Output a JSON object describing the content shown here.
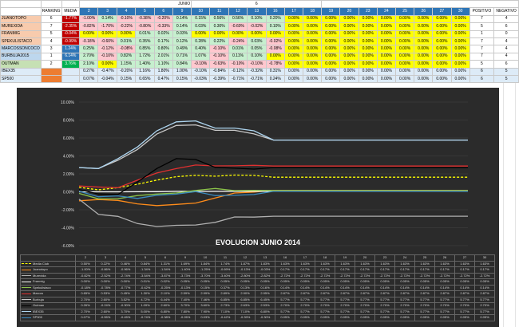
{
  "header": {
    "month": "JUNIO",
    "number": "6",
    "ranking": "RANKING",
    "media": "MEDIA",
    "positivo": "POSITIVO",
    "negativo": "NEGATIVO"
  },
  "days": [
    "2",
    "3",
    "4",
    "5",
    "6",
    "9",
    "10",
    "11",
    "12",
    "13",
    "16",
    "17",
    "18",
    "19",
    "20",
    "23",
    "24",
    "25",
    "26",
    "27",
    "30"
  ],
  "rows": [
    {
      "name": "JUANOTOPO",
      "rank": "6",
      "media": "-1.77%",
      "color": "pink",
      "vals": [
        "-1.00%",
        "0.14%",
        "-0.10%",
        "-0.38%",
        "-0.20%",
        "0.14%",
        "0.15%",
        "0.56%",
        "0.56%",
        "0.10%",
        "0.20%",
        "0.00%",
        "0.00%",
        "0.00%",
        "0.00%",
        "0.00%",
        "0.00%",
        "0.00%",
        "0.00%",
        "0.00%",
        "0.00%"
      ],
      "pos": "7",
      "neg": "4"
    },
    {
      "name": "MUREXIDA",
      "rank": "7",
      "media": "-2.35%",
      "color": "pink",
      "vals": [
        "-0.82%",
        "-1.70%",
        "-0.22%",
        "-0.80%",
        "-0.33%",
        "0.14%",
        "0.03%",
        "0.30%",
        "-0.60%",
        "-0.02%",
        "0.10%",
        "0.00%",
        "0.00%",
        "0.00%",
        "0.00%",
        "0.00%",
        "0.00%",
        "0.00%",
        "0.00%",
        "0.00%",
        "0.00%"
      ],
      "pos": "5",
      "neg": "6"
    },
    {
      "name": "FRANMIG",
      "rank": "5",
      "media": "-0.04%",
      "color": "pink",
      "vals": [
        "0.00%",
        "0.00%",
        "0.00%",
        "0.01%",
        "0.02%",
        "0.03%",
        "0.00%",
        "0.00%",
        "0.00%",
        "0.00%",
        "0.00%",
        "0.00%",
        "0.00%",
        "0.00%",
        "0.00%",
        "0.00%",
        "0.00%",
        "0.00%",
        "0.00%",
        "0.00%",
        "0.00%"
      ],
      "pos": "1",
      "neg": "0"
    },
    {
      "name": "SPEKULISTACO",
      "rank": "4",
      "media": "-0.99%",
      "color": "pink",
      "vals": [
        "-0.18%",
        "-0.60%",
        "0.01%",
        "0.35%",
        "0.17%",
        "0.12%",
        "0.28%",
        "0.22%",
        "-0.24%",
        "0.03%",
        "-0.02%",
        "0.00%",
        "0.00%",
        "0.00%",
        "0.00%",
        "0.00%",
        "0.00%",
        "0.00%",
        "0.00%",
        "0.00%",
        "0.00%"
      ],
      "pos": "7",
      "neg": "4"
    },
    {
      "name": "MARCOSSONCOCO",
      "rank": "3",
      "media": "1.24%",
      "color": "blue",
      "vals": [
        "0.25%",
        "-0.12%",
        "-0.08%",
        "0.85%",
        "0.80%",
        "0.49%",
        "0.40%",
        "-0.10%",
        "0.01%",
        "0.05%",
        "-0.08%",
        "0.00%",
        "0.00%",
        "0.00%",
        "0.00%",
        "0.00%",
        "0.00%",
        "0.00%",
        "0.00%",
        "0.00%",
        "0.00%"
      ],
      "pos": "7",
      "neg": "4"
    },
    {
      "name": "BURBUJA2015",
      "rank": "1",
      "media": "6.14%",
      "color": "blue",
      "vals": [
        "2.70%",
        "-0.10%",
        "0.82%",
        "1.72%",
        "2.01%",
        "0.71%",
        "1.07%",
        "-0.10%",
        "0.11%",
        "0.10%",
        "0.00%",
        "0.00%",
        "0.00%",
        "0.00%",
        "0.00%",
        "0.00%",
        "0.00%",
        "0.00%",
        "0.00%",
        "0.00%",
        "0.00%"
      ],
      "pos": "7",
      "neg": "4"
    },
    {
      "name": "OUTMAN",
      "rank": "2",
      "media": "3.76%",
      "color": "green",
      "vals": [
        "2.10%",
        "0.00%",
        "1.15%",
        "1.40%",
        "1.10%",
        "0.84%",
        "-0.10%",
        "-0.63%",
        "-0.10%",
        "-0.10%",
        "-0.78%",
        "0.00%",
        "0.00%",
        "0.00%",
        "0.00%",
        "0.00%",
        "0.00%",
        "0.00%",
        "0.00%",
        "0.00%",
        "0.00%"
      ],
      "pos": "5",
      "neg": "6"
    }
  ],
  "index_rows": [
    {
      "name": "IBEX35",
      "vals": [
        "0.27%",
        "-0.47%",
        "-0.20%",
        "1.16%",
        "1.80%",
        "1.00%",
        "-0.10%",
        "-0.84%",
        "-0.12%",
        "-0.32%",
        "0.31%",
        "0.00%",
        "0.00%",
        "0.00%",
        "0.00%",
        "0.00%",
        "0.00%",
        "0.00%",
        "0.00%",
        "0.00%",
        "0.00%"
      ],
      "pos": "6",
      "neg": "5"
    },
    {
      "name": "SP500",
      "vals": [
        "0.07%",
        "-0.04%",
        "0.15%",
        "0.65%",
        "0.47%",
        "0.15%",
        "-0.03%",
        "-0.39%",
        "-0.71%",
        "-0.71%",
        "0.24%",
        "0.00%",
        "0.00%",
        "0.00%",
        "0.00%",
        "0.00%",
        "0.00%",
        "0.00%",
        "0.00%",
        "0.00%",
        "0.00%"
      ],
      "pos": "6",
      "neg": "5"
    }
  ],
  "chart_data": {
    "type": "line",
    "title": "EVOLUCION JUNIO 2014",
    "x": [
      "2",
      "3",
      "4",
      "5",
      "6",
      "9",
      "10",
      "11",
      "12",
      "13",
      "16",
      "17",
      "18",
      "19",
      "20",
      "23",
      "24",
      "25",
      "26",
      "27",
      "30"
    ],
    "yticks": [
      "10.00%",
      "8.00%",
      "6.00%",
      "4.00%",
      "2.00%",
      "0.00%",
      "-2.00%",
      "-4.00%",
      "-6.00%"
    ],
    "ylim": [
      -6,
      10
    ],
    "series": [
      {
        "name": "Media Club",
        "color": "#ffff00",
        "dashed": true,
        "values": [
          0.5,
          0.22,
          0.46,
          0.84,
          1.31,
          1.69,
          1.84,
          1.74,
          1.87,
          1.83,
          1.63,
          1.63,
          1.63,
          1.63,
          1.63,
          1.63,
          1.63,
          1.63,
          1.63,
          1.63,
          1.63
        ],
        "labels": [
          "0.50%",
          "0.22%",
          "0.46%",
          "0.84%",
          "1.31%",
          "1.69%",
          "1.84%",
          "1.74%",
          "1.87%",
          "1.83%",
          "1.63%",
          "1.63%",
          "1.63%",
          "1.63%",
          "1.63%",
          "1.63%",
          "1.63%",
          "1.63%",
          "1.63%",
          "1.63%",
          "1.63%"
        ]
      },
      {
        "name": "Juanotopo",
        "color": "#ff8c1a",
        "dashed": false,
        "values": [
          -1.0,
          -0.86,
          -0.96,
          -1.34,
          -1.54,
          -1.4,
          -1.25,
          -0.69,
          -0.13,
          -0.03,
          0.17,
          0.17,
          0.17,
          0.17,
          0.17,
          0.17,
          0.17,
          0.17,
          0.17,
          0.17,
          0.17
        ],
        "labels": [
          "-1.00%",
          "-0.86%",
          "-0.96%",
          "-1.34%",
          "-1.54%",
          "-1.40%",
          "-1.25%",
          "-0.69%",
          "-0.13%",
          "-0.03%",
          "0.17%",
          "0.17%",
          "0.17%",
          "0.17%",
          "0.17%",
          "0.17%",
          "0.17%",
          "0.17%",
          "0.17%",
          "0.17%",
          "0.17%"
        ]
      },
      {
        "name": "Murexida",
        "color": "#b0b0b0",
        "dashed": false,
        "values": [
          -0.82,
          -2.52,
          -2.74,
          -3.54,
          -3.87,
          -3.73,
          -3.7,
          -3.4,
          -2.8,
          -2.82,
          -2.72,
          -2.72,
          -2.72,
          -2.72,
          -2.72,
          -2.72,
          -2.72,
          -2.72,
          -2.72,
          -2.72,
          -2.72
        ],
        "labels": [
          "-0.82%",
          "-2.52%",
          "-2.74%",
          "-3.54%",
          "-3.87%",
          "-3.73%",
          "-3.70%",
          "-3.40%",
          "-2.80%",
          "-2.82%",
          "-2.72%",
          "-2.72%",
          "-2.72%",
          "-2.72%",
          "-2.72%",
          "-2.72%",
          "-2.72%",
          "-2.72%",
          "-2.72%",
          "-2.72%",
          "-2.72%"
        ]
      },
      {
        "name": "Franmig",
        "color": "#ffffff",
        "dashed": false,
        "values": [
          0.0,
          0.0,
          0.0,
          0.01,
          0.02,
          0.05,
          0.05,
          0.05,
          0.05,
          0.05,
          0.05,
          0.05,
          0.05,
          0.05,
          0.05,
          0.05,
          0.05,
          0.05,
          0.05,
          0.05,
          0.05
        ],
        "labels": [
          "0.00%",
          "0.00%",
          "0.00%",
          "0.01%",
          "0.02%",
          "0.05%",
          "0.05%",
          "0.05%",
          "0.05%",
          "0.05%",
          "0.05%",
          "0.05%",
          "0.05%",
          "0.05%",
          "0.05%",
          "0.05%",
          "0.05%",
          "0.05%",
          "0.05%",
          "0.05%",
          "0.05%"
        ]
      },
      {
        "name": "Spekulistaco",
        "color": "#8bc34a",
        "dashed": false,
        "values": [
          -0.18,
          -0.78,
          -0.77,
          -0.42,
          -0.25,
          -0.13,
          0.15,
          0.37,
          0.13,
          0.16,
          0.14,
          0.14,
          0.14,
          0.14,
          0.14,
          0.14,
          0.14,
          0.14,
          0.14,
          0.14,
          0.14
        ],
        "labels": [
          "-0.18%",
          "-0.78%",
          "-0.77%",
          "-0.42%",
          "-0.25%",
          "-0.13%",
          "0.15%",
          "0.37%",
          "0.13%",
          "0.16%",
          "0.14%",
          "0.14%",
          "0.14%",
          "0.14%",
          "0.14%",
          "0.14%",
          "0.14%",
          "0.14%",
          "0.14%",
          "0.14%",
          "0.14%"
        ]
      },
      {
        "name": "Marcos",
        "color": "#e03030",
        "dashed": false,
        "values": [
          0.65,
          0.53,
          0.45,
          1.3,
          2.1,
          2.59,
          2.99,
          2.89,
          2.9,
          2.95,
          2.87,
          2.87,
          2.87,
          2.87,
          2.87,
          2.87,
          2.87,
          2.87,
          2.87,
          2.87,
          2.87
        ],
        "labels": [
          "0.65%",
          "0.53%",
          "0.45%",
          "1.30%",
          "2.10%",
          "2.59%",
          "2.99%",
          "2.89%",
          "2.90%",
          "2.95%",
          "2.87%",
          "2.87%",
          "2.87%",
          "2.87%",
          "2.87%",
          "2.87%",
          "2.87%",
          "2.87%",
          "2.87%",
          "2.87%",
          "2.87%"
        ]
      },
      {
        "name": "Burbuja",
        "color": "#c8c8c8",
        "dashed": false,
        "values": [
          2.7,
          2.6,
          3.52,
          4.72,
          6.44,
          7.4,
          7.46,
          6.85,
          6.85,
          6.45,
          5.77,
          5.77,
          5.77,
          5.77,
          5.77,
          5.77,
          5.77,
          5.77,
          5.77,
          5.77,
          5.77
        ],
        "labels": [
          "2.70%",
          "2.60%",
          "3.52%",
          "4.72%",
          "6.44%",
          "7.40%",
          "7.46%",
          "6.85%",
          "6.85%",
          "6.45%",
          "5.77%",
          "5.77%",
          "5.77%",
          "5.77%",
          "5.77%",
          "5.77%",
          "5.77%",
          "5.77%",
          "5.77%",
          "5.77%",
          "5.77%"
        ]
      },
      {
        "name": "Outman",
        "color": "#000000",
        "dashed": false,
        "values": [
          0.26,
          -0.24,
          -0.3,
          1.09,
          2.6,
          3.7,
          3.6,
          2.73,
          2.63,
          2.53,
          2.7,
          2.7,
          2.7,
          2.7,
          2.7,
          2.7,
          2.7,
          2.7,
          2.7,
          2.7,
          2.7
        ],
        "labels": [
          "0.26%",
          "-0.24%",
          "-0.30%",
          "1.09%",
          "2.60%",
          "3.70%",
          "3.60%",
          "2.73%",
          "2.63%",
          "2.53%",
          "2.70%",
          "2.70%",
          "2.70%",
          "2.70%",
          "2.70%",
          "2.70%",
          "2.70%",
          "2.70%",
          "2.70%",
          "2.70%",
          "2.70%"
        ]
      },
      {
        "name": "IBEX35",
        "color": "#aed6f1",
        "dashed": false,
        "values": [
          2.7,
          2.6,
          3.7,
          5.0,
          6.8,
          7.8,
          7.9,
          7.1,
          7.1,
          6.8,
          5.77,
          5.77,
          5.77,
          5.77,
          5.77,
          5.77,
          5.77,
          5.77,
          5.77,
          5.77,
          5.77
        ],
        "labels": [
          "2.70%",
          "2.60%",
          "3.70%",
          "5.00%",
          "6.80%",
          "7.80%",
          "7.90%",
          "7.10%",
          "7.10%",
          "6.80%",
          "5.77%",
          "5.77%",
          "5.77%",
          "5.77%",
          "5.77%",
          "5.77%",
          "5.77%",
          "5.77%",
          "5.77%",
          "5.77%",
          "5.77%"
        ]
      },
      {
        "name": "SP500",
        "color": "#3b8bbf",
        "dashed": false,
        "values": [
          0.07,
          -0.55,
          -0.45,
          -0.74,
          -0.38,
          -0.26,
          0.03,
          -0.42,
          -0.39,
          -0.3,
          0.05,
          0.05,
          0.05,
          0.05,
          0.05,
          0.05,
          0.05,
          0.05,
          0.05,
          0.05,
          0.05
        ],
        "labels": [
          "0.07%",
          "-0.55%",
          "-0.45%",
          "-0.74%",
          "-0.38%",
          "-0.26%",
          "0.03%",
          "-0.42%",
          "-0.39%",
          "-0.30%",
          "0.05%",
          "0.05%",
          "0.05%",
          "0.05%",
          "0.05%",
          "0.05%",
          "0.05%",
          "0.05%",
          "0.05%",
          "0.05%",
          "0.05%"
        ]
      }
    ]
  }
}
